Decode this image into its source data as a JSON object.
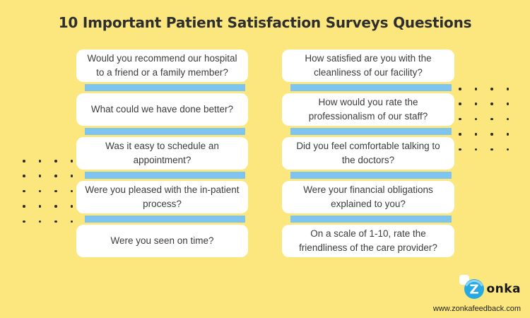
{
  "title": "10 Important Patient Satisfaction Surveys Questions",
  "columns": {
    "left": [
      "Would you recommend our hospital to a friend or a family member?",
      "What could we have done better?",
      "Was it easy to schedule an appointment?",
      "Were you pleased with the in-patient process?",
      "Were you seen on time?"
    ],
    "right": [
      "How satisfied are you with the cleanliness of our facility?",
      "How would you rate the professionalism of our staff?",
      "Did you feel comfortable talking to the doctors?",
      "Were your financial obligations explained to you?",
      "On a scale of 1-10, rate the friendliness of the care provider?"
    ]
  },
  "footer": {
    "logo_initial": "Z",
    "logo_rest": "onka",
    "website": "www.zonkafeedback.com"
  },
  "colors": {
    "background": "#FBE77D",
    "card_bg": "#FFFFFF",
    "accent_bar": "#7DC4F0",
    "logo_blue": "#29A9E1",
    "logo_blue_light": "#8ED3F3",
    "title_text": "#2E2E2E",
    "card_text": "#3C3C3C",
    "dot": "#2E2E2E"
  },
  "decor": {
    "dot_grid": {
      "rows": 5,
      "cols": 4
    }
  }
}
